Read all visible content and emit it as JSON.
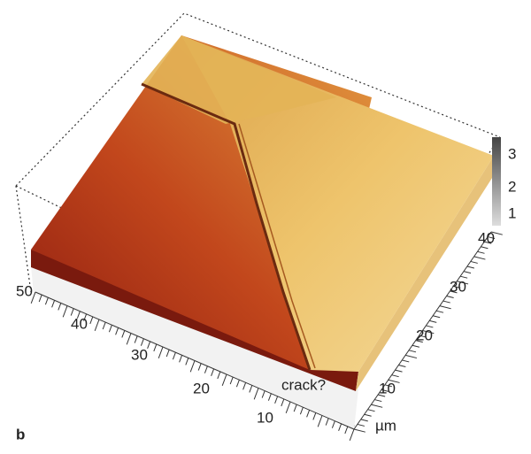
{
  "figure": {
    "panel_label": "b",
    "annotation": "crack?",
    "x_axis": {
      "ticks": [
        "50",
        "40",
        "30",
        "20",
        "10"
      ]
    },
    "y_axis": {
      "ticks": [
        "10",
        "20",
        "30",
        "40"
      ],
      "unit": "µm"
    },
    "z_axis": {
      "ticks": [
        "3",
        "2",
        "1"
      ]
    }
  }
}
